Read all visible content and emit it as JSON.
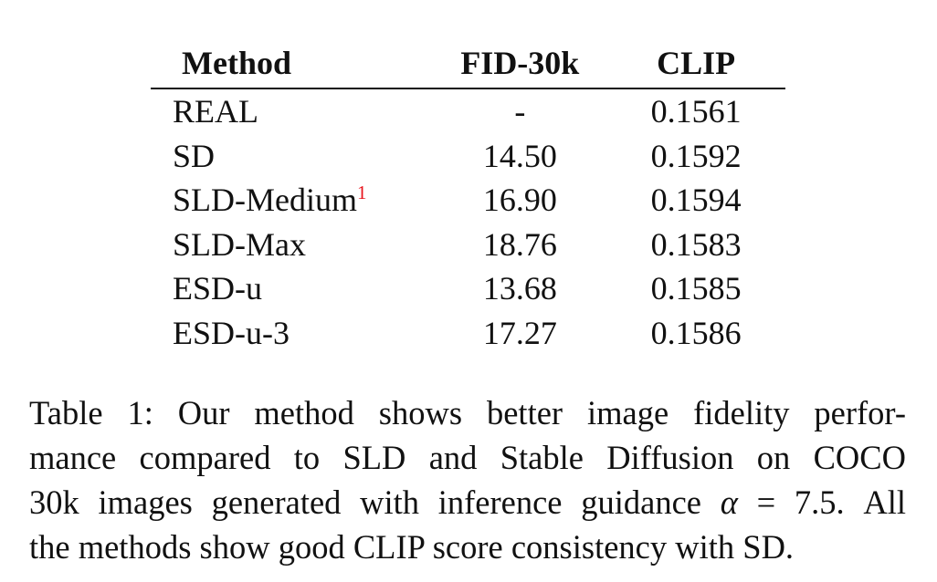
{
  "table": {
    "headers": {
      "method": "Method",
      "fid": "FID-30k",
      "clip": "CLIP"
    },
    "rows": [
      {
        "method": "REAL",
        "footnote": "",
        "fid": "-",
        "clip": "0.1561"
      },
      {
        "method": "SD",
        "footnote": "",
        "fid": "14.50",
        "clip": "0.1592"
      },
      {
        "method": "SLD-Medium",
        "footnote": "1",
        "fid": "16.90",
        "clip": "0.1594"
      },
      {
        "method": "SLD-Max",
        "footnote": "",
        "fid": "18.76",
        "clip": "0.1583"
      },
      {
        "method": "ESD-u",
        "footnote": "",
        "fid": "13.68",
        "clip": "0.1585"
      },
      {
        "method": "ESD-u-3",
        "footnote": "",
        "fid": "17.27",
        "clip": "0.1586"
      }
    ]
  },
  "caption": {
    "line1": "Table 1: Our method shows better image fidelity perfor-",
    "line2": "mance compared to SLD and Stable Diffusion on COCO",
    "line3_pre": "30k images generated with inference guidance ",
    "line3_symbol": "α",
    "line3_post": " = 7.5. All",
    "line4": "the methods show good CLIP score consistency with SD."
  }
}
